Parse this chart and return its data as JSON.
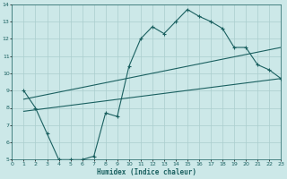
{
  "xlabel": "Humidex (Indice chaleur)",
  "xlim": [
    0,
    23
  ],
  "ylim": [
    5,
    14
  ],
  "xticks": [
    0,
    1,
    2,
    3,
    4,
    5,
    6,
    7,
    8,
    9,
    10,
    11,
    12,
    13,
    14,
    15,
    16,
    17,
    18,
    19,
    20,
    21,
    22,
    23
  ],
  "yticks": [
    5,
    6,
    7,
    8,
    9,
    10,
    11,
    12,
    13,
    14
  ],
  "bg_color": "#cce8e8",
  "grid_color": "#aacece",
  "line_color": "#1a6060",
  "curve_x": [
    1,
    2,
    3,
    4,
    5,
    6,
    7,
    8,
    9,
    10,
    11,
    12,
    13,
    14,
    15,
    16,
    17,
    18,
    19,
    20,
    21,
    22,
    23
  ],
  "curve_y": [
    9.0,
    8.0,
    6.5,
    5.0,
    5.0,
    5.0,
    5.2,
    7.7,
    7.5,
    10.4,
    12.0,
    12.7,
    12.3,
    13.0,
    13.7,
    13.3,
    13.0,
    12.6,
    11.5,
    11.5,
    10.5,
    10.2,
    9.7
  ],
  "upper_line_x": [
    1,
    23
  ],
  "upper_line_y": [
    8.5,
    11.5
  ],
  "lower_line_x": [
    1,
    23
  ],
  "lower_line_y": [
    7.8,
    9.7
  ]
}
